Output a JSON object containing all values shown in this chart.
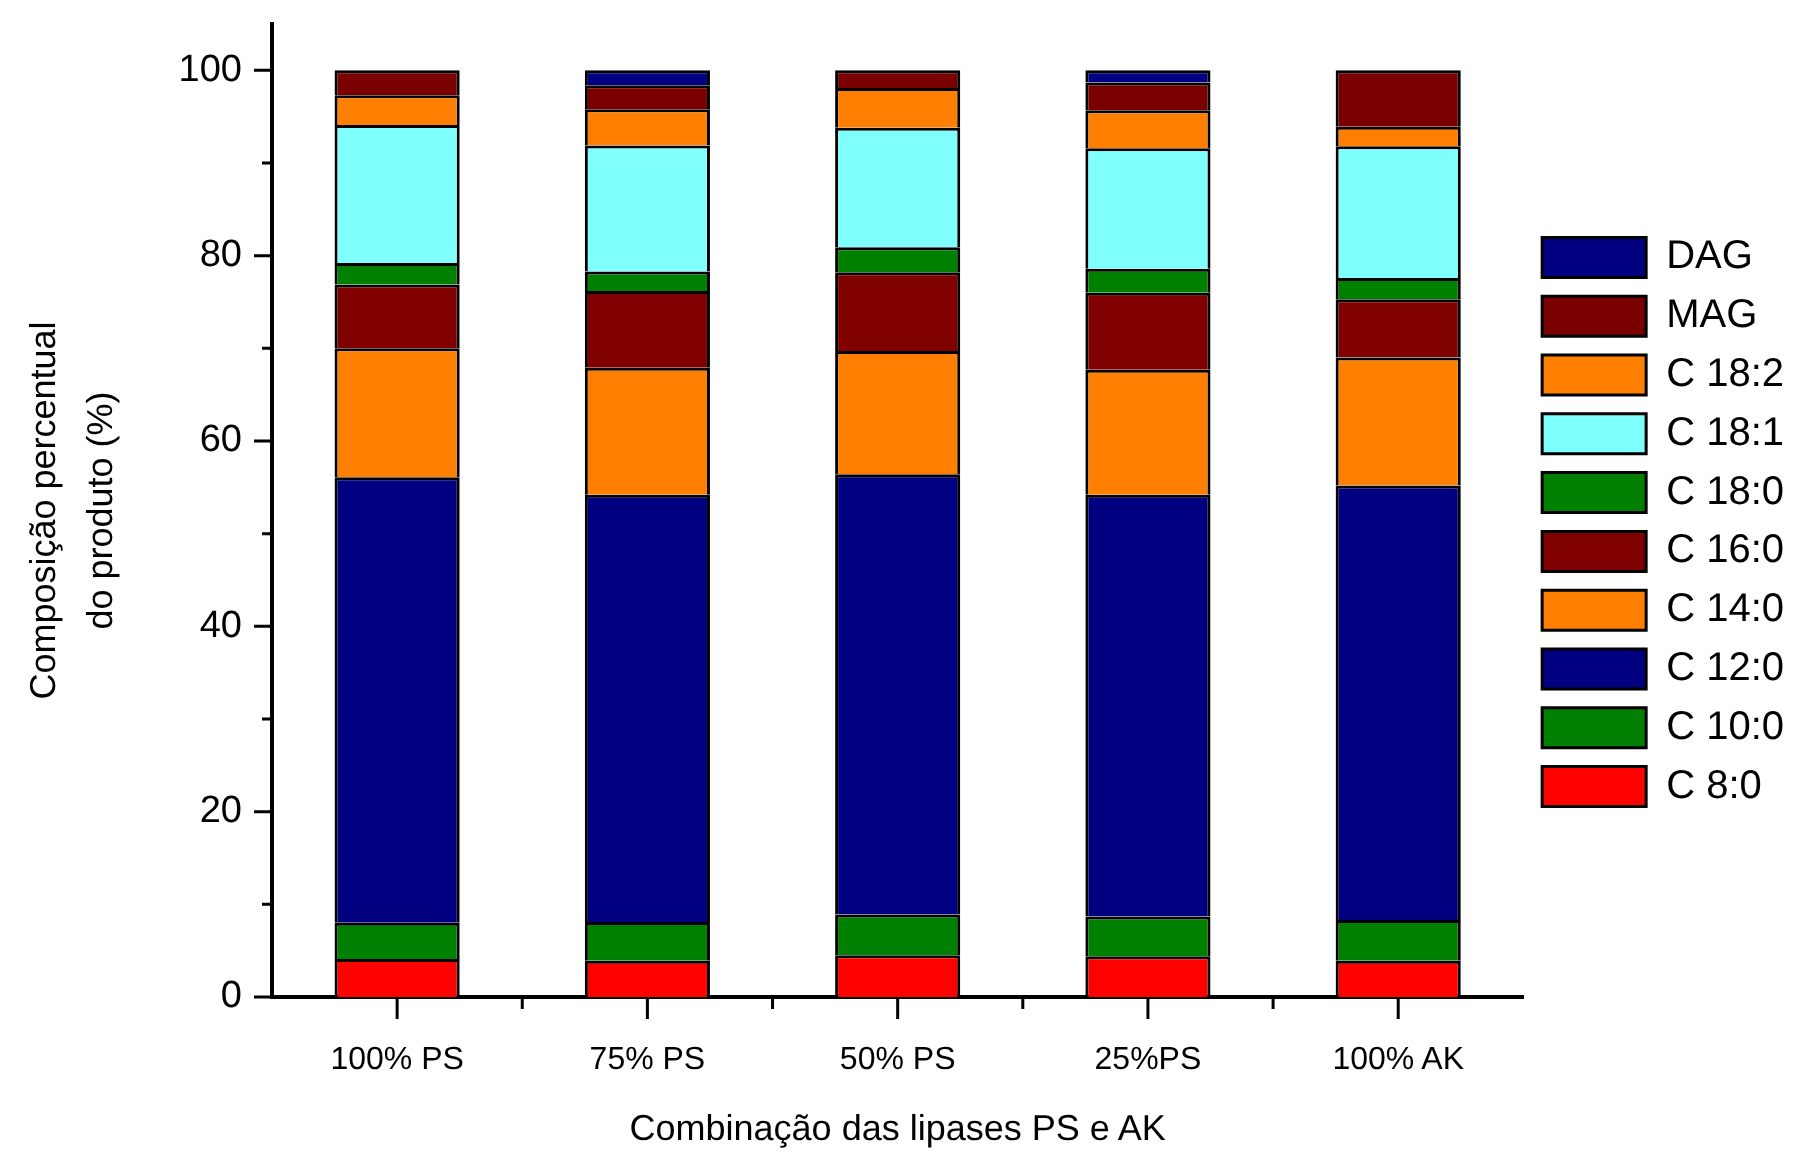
{
  "chart_data": {
    "type": "bar",
    "stacked": true,
    "xlabel": "Combinação das lipases PS e AK",
    "ylabel": "Composição percentual\ndo produto (%)",
    "categories": [
      "100% PS",
      "75% PS",
      "50% PS",
      "25%PS",
      "100% AK"
    ],
    "ylim": [
      0,
      105
    ],
    "yticks": [
      0,
      {
        "value": 10,
        "label": null
      },
      20,
      {
        "value": 30,
        "label": null
      },
      40,
      {
        "value": 50,
        "label": null
      },
      60,
      {
        "value": 70,
        "label": null
      },
      80,
      {
        "value": 90,
        "label": null
      },
      100
    ],
    "grid": false,
    "legend": "right",
    "series": [
      {
        "name": "C 8:0",
        "color": "#ff0000",
        "values": [
          4.1,
          3.9,
          4.5,
          4.4,
          3.9
        ]
      },
      {
        "name": "C 10:0",
        "color": "#008000",
        "values": [
          3.9,
          4.2,
          4.4,
          4.3,
          4.4
        ]
      },
      {
        "name": "C 12:0",
        "color": "#000080",
        "values": [
          48.1,
          46.1,
          47.5,
          45.5,
          46.9
        ]
      },
      {
        "name": "C 14:0",
        "color": "#ff8000",
        "values": [
          13.9,
          13.7,
          13.3,
          13.5,
          13.8
        ]
      },
      {
        "name": "C 16:0",
        "color": "#800000",
        "values": [
          6.9,
          8.3,
          8.5,
          8.3,
          6.3
        ]
      },
      {
        "name": "C 18:0",
        "color": "#008000",
        "values": [
          2.3,
          2.1,
          2.7,
          2.6,
          2.3
        ]
      },
      {
        "name": "C 18:1",
        "color": "#80ffff",
        "values": [
          14.9,
          13.6,
          12.9,
          13.0,
          14.2
        ]
      },
      {
        "name": "C 18:2",
        "color": "#ff8000",
        "values": [
          3.2,
          3.9,
          4.3,
          4.1,
          2.1
        ]
      },
      {
        "name": "MAG",
        "color": "#7a0000",
        "values": [
          2.7,
          2.6,
          1.9,
          3.0,
          6.1
        ]
      },
      {
        "name": "DAG",
        "color": "#000080",
        "values": [
          null,
          1.6,
          null,
          1.3,
          null
        ]
      }
    ]
  }
}
